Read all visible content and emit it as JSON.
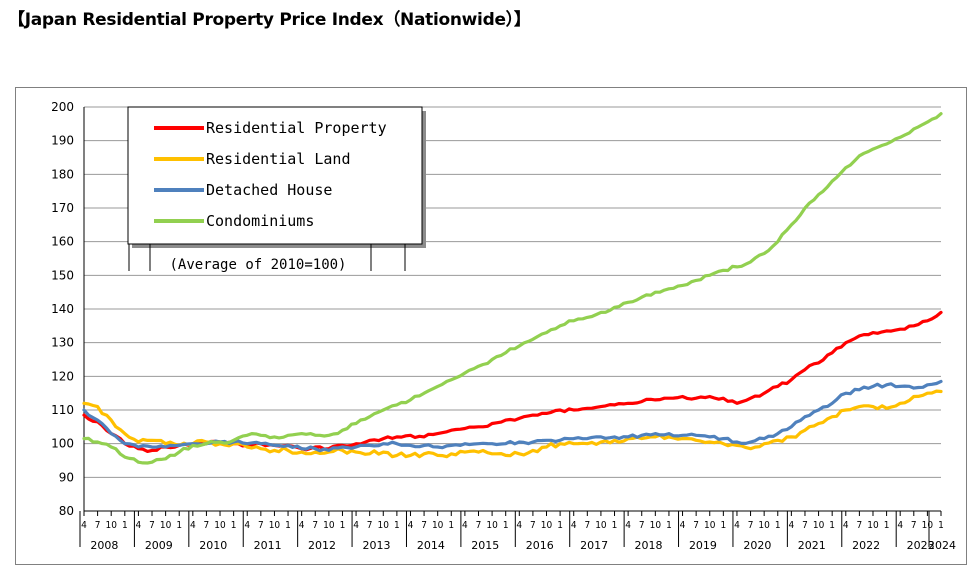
{
  "title": "【Japan Residential Property Price Index（Nationwide）】",
  "chart_data": {
    "type": "line",
    "title": "【Japan Residential Property Price Index（Nationwide）】",
    "note": "(Average of 2010=100)",
    "ylim": [
      80,
      200
    ],
    "yticks": [
      80,
      90,
      100,
      110,
      120,
      130,
      140,
      150,
      160,
      170,
      180,
      190,
      200
    ],
    "grid": true,
    "legend_position": "top-left",
    "month_labels": [
      "4",
      "7",
      "10",
      "1"
    ],
    "years": [
      "2008",
      "2009",
      "2010",
      "2011",
      "2012",
      "2013",
      "2014",
      "2015",
      "2016",
      "2017",
      "2018",
      "2019",
      "2020",
      "2021",
      "2022",
      "2023",
      "2024"
    ],
    "x_start": "2008-04",
    "x_end": "2024-01",
    "series": [
      {
        "name": "Residential Property",
        "color": "#ff0000",
        "points": [
          [
            "2008-04",
            108.5
          ],
          [
            "2008-07",
            106.5
          ],
          [
            "2008-10",
            103
          ],
          [
            "2009-01",
            100
          ],
          [
            "2009-04",
            98.5
          ],
          [
            "2009-07",
            98
          ],
          [
            "2009-10",
            99
          ],
          [
            "2010-01",
            99.5
          ],
          [
            "2010-04",
            100
          ],
          [
            "2010-07",
            100
          ],
          [
            "2010-10",
            100.5
          ],
          [
            "2011-01",
            100
          ],
          [
            "2011-04",
            99.5
          ],
          [
            "2011-07",
            100
          ],
          [
            "2011-10",
            99.5
          ],
          [
            "2012-01",
            99.5
          ],
          [
            "2012-04",
            98.5
          ],
          [
            "2012-07",
            99
          ],
          [
            "2012-10",
            98.5
          ],
          [
            "2013-01",
            99.5
          ],
          [
            "2013-04",
            100
          ],
          [
            "2013-07",
            101
          ],
          [
            "2013-10",
            101.5
          ],
          [
            "2014-01",
            102
          ],
          [
            "2014-04",
            102.5
          ],
          [
            "2014-07",
            102
          ],
          [
            "2014-10",
            103
          ],
          [
            "2015-01",
            104
          ],
          [
            "2015-04",
            104.5
          ],
          [
            "2015-07",
            105
          ],
          [
            "2015-10",
            106
          ],
          [
            "2016-01",
            107
          ],
          [
            "2016-04",
            107.5
          ],
          [
            "2016-07",
            108.5
          ],
          [
            "2016-10",
            109
          ],
          [
            "2017-01",
            110
          ],
          [
            "2017-04",
            110
          ],
          [
            "2017-07",
            110.5
          ],
          [
            "2017-10",
            111
          ],
          [
            "2018-01",
            111.5
          ],
          [
            "2018-04",
            112
          ],
          [
            "2018-07",
            112.5
          ],
          [
            "2018-10",
            113
          ],
          [
            "2019-01",
            113.5
          ],
          [
            "2019-04",
            114
          ],
          [
            "2019-07",
            113.5
          ],
          [
            "2019-10",
            114
          ],
          [
            "2020-01",
            113.5
          ],
          [
            "2020-04",
            112
          ],
          [
            "2020-07",
            113.5
          ],
          [
            "2020-10",
            115
          ],
          [
            "2021-01",
            117
          ],
          [
            "2021-04",
            119
          ],
          [
            "2021-07",
            122
          ],
          [
            "2021-10",
            124
          ],
          [
            "2022-01",
            127
          ],
          [
            "2022-04",
            130
          ],
          [
            "2022-07",
            132
          ],
          [
            "2022-10",
            133
          ],
          [
            "2023-01",
            133.5
          ],
          [
            "2023-04",
            134
          ],
          [
            "2023-07",
            135
          ],
          [
            "2023-10",
            136.5
          ],
          [
            "2024-01",
            139
          ]
        ]
      },
      {
        "name": "Residential Land",
        "color": "#ffc000",
        "points": [
          [
            "2008-04",
            112
          ],
          [
            "2008-07",
            111
          ],
          [
            "2008-10",
            107
          ],
          [
            "2009-01",
            103
          ],
          [
            "2009-04",
            100.5
          ],
          [
            "2009-07",
            101
          ],
          [
            "2009-10",
            100
          ],
          [
            "2010-01",
            99.5
          ],
          [
            "2010-04",
            100
          ],
          [
            "2010-07",
            100.5
          ],
          [
            "2010-10",
            100
          ],
          [
            "2011-01",
            100
          ],
          [
            "2011-04",
            99
          ],
          [
            "2011-07",
            98.5
          ],
          [
            "2011-10",
            98
          ],
          [
            "2012-01",
            98
          ],
          [
            "2012-04",
            97.5
          ],
          [
            "2012-07",
            97.5
          ],
          [
            "2012-10",
            97.5
          ],
          [
            "2013-01",
            98
          ],
          [
            "2013-04",
            97.5
          ],
          [
            "2013-07",
            97
          ],
          [
            "2013-10",
            97.5
          ],
          [
            "2014-01",
            96.5
          ],
          [
            "2014-04",
            96.5
          ],
          [
            "2014-07",
            97
          ],
          [
            "2014-10",
            96.5
          ],
          [
            "2015-01",
            97
          ],
          [
            "2015-04",
            97.5
          ],
          [
            "2015-07",
            97.5
          ],
          [
            "2015-10",
            97
          ],
          [
            "2016-01",
            96.5
          ],
          [
            "2016-04",
            97
          ],
          [
            "2016-07",
            98
          ],
          [
            "2016-10",
            99
          ],
          [
            "2017-01",
            100
          ],
          [
            "2017-04",
            100
          ],
          [
            "2017-07",
            100
          ],
          [
            "2017-10",
            100.5
          ],
          [
            "2018-01",
            101
          ],
          [
            "2018-04",
            101.5
          ],
          [
            "2018-07",
            101.5
          ],
          [
            "2018-10",
            102
          ],
          [
            "2019-01",
            102
          ],
          [
            "2019-04",
            101.5
          ],
          [
            "2019-07",
            101
          ],
          [
            "2019-10",
            100.5
          ],
          [
            "2020-01",
            100
          ],
          [
            "2020-04",
            99.5
          ],
          [
            "2020-07",
            98.5
          ],
          [
            "2020-10",
            100
          ],
          [
            "2021-01",
            101
          ],
          [
            "2021-04",
            102
          ],
          [
            "2021-07",
            104
          ],
          [
            "2021-10",
            106
          ],
          [
            "2022-01",
            108
          ],
          [
            "2022-04",
            110
          ],
          [
            "2022-07",
            111
          ],
          [
            "2022-10",
            111
          ],
          [
            "2023-01",
            110.5
          ],
          [
            "2023-04",
            112
          ],
          [
            "2023-07",
            114
          ],
          [
            "2023-10",
            115
          ],
          [
            "2024-01",
            115.5
          ]
        ]
      },
      {
        "name": "Detached House",
        "color": "#4f81bd",
        "points": [
          [
            "2008-04",
            110
          ],
          [
            "2008-07",
            107
          ],
          [
            "2008-10",
            103
          ],
          [
            "2009-01",
            100
          ],
          [
            "2009-04",
            99
          ],
          [
            "2009-07",
            99
          ],
          [
            "2009-10",
            99
          ],
          [
            "2010-01",
            99.5
          ],
          [
            "2010-04",
            100
          ],
          [
            "2010-07",
            100
          ],
          [
            "2010-10",
            100.5
          ],
          [
            "2011-01",
            100.5
          ],
          [
            "2011-04",
            100
          ],
          [
            "2011-07",
            100
          ],
          [
            "2011-10",
            99.5
          ],
          [
            "2012-01",
            99.5
          ],
          [
            "2012-04",
            98.5
          ],
          [
            "2012-07",
            98.5
          ],
          [
            "2012-10",
            98
          ],
          [
            "2013-01",
            99
          ],
          [
            "2013-04",
            99
          ],
          [
            "2013-07",
            99.5
          ],
          [
            "2013-10",
            100
          ],
          [
            "2014-01",
            100
          ],
          [
            "2014-04",
            99.5
          ],
          [
            "2014-07",
            99.5
          ],
          [
            "2014-10",
            99
          ],
          [
            "2015-01",
            99.5
          ],
          [
            "2015-04",
            100
          ],
          [
            "2015-07",
            100
          ],
          [
            "2015-10",
            100
          ],
          [
            "2016-01",
            100
          ],
          [
            "2016-04",
            100.5
          ],
          [
            "2016-07",
            100.5
          ],
          [
            "2016-10",
            101
          ],
          [
            "2017-01",
            101
          ],
          [
            "2017-04",
            101.5
          ],
          [
            "2017-07",
            101.5
          ],
          [
            "2017-10",
            102
          ],
          [
            "2018-01",
            102
          ],
          [
            "2018-04",
            102
          ],
          [
            "2018-07",
            102.5
          ],
          [
            "2018-10",
            103
          ],
          [
            "2019-01",
            103
          ],
          [
            "2019-04",
            102.5
          ],
          [
            "2019-07",
            102.5
          ],
          [
            "2019-10",
            102
          ],
          [
            "2020-01",
            101.5
          ],
          [
            "2020-04",
            100.5
          ],
          [
            "2020-07",
            100.5
          ],
          [
            "2020-10",
            101.5
          ],
          [
            "2021-01",
            103
          ],
          [
            "2021-04",
            105
          ],
          [
            "2021-07",
            108
          ],
          [
            "2021-10",
            110
          ],
          [
            "2022-01",
            112
          ],
          [
            "2022-04",
            115
          ],
          [
            "2022-07",
            116
          ],
          [
            "2022-10",
            117
          ],
          [
            "2023-01",
            117.5
          ],
          [
            "2023-04",
            117
          ],
          [
            "2023-07",
            116.5
          ],
          [
            "2023-10",
            117.5
          ],
          [
            "2024-01",
            118.5
          ]
        ]
      },
      {
        "name": "Condominiums",
        "color": "#92d050",
        "points": [
          [
            "2008-04",
            101.5
          ],
          [
            "2008-07",
            100.5
          ],
          [
            "2008-10",
            99
          ],
          [
            "2009-01",
            96
          ],
          [
            "2009-04",
            94.5
          ],
          [
            "2009-07",
            94.5
          ],
          [
            "2009-10",
            95.5
          ],
          [
            "2010-01",
            97.5
          ],
          [
            "2010-04",
            99.5
          ],
          [
            "2010-07",
            100
          ],
          [
            "2010-10",
            100.5
          ],
          [
            "2011-01",
            101
          ],
          [
            "2011-04",
            102.5
          ],
          [
            "2011-07",
            102.5
          ],
          [
            "2011-10",
            102
          ],
          [
            "2012-01",
            102.5
          ],
          [
            "2012-04",
            103
          ],
          [
            "2012-07",
            102.5
          ],
          [
            "2012-10",
            102.5
          ],
          [
            "2013-01",
            104
          ],
          [
            "2013-04",
            106
          ],
          [
            "2013-07",
            108
          ],
          [
            "2013-10",
            110
          ],
          [
            "2014-01",
            111.5
          ],
          [
            "2014-04",
            113
          ],
          [
            "2014-07",
            115
          ],
          [
            "2014-10",
            117
          ],
          [
            "2015-01",
            119
          ],
          [
            "2015-04",
            121
          ],
          [
            "2015-07",
            123
          ],
          [
            "2015-10",
            125
          ],
          [
            "2016-01",
            127
          ],
          [
            "2016-04",
            129
          ],
          [
            "2016-07",
            131
          ],
          [
            "2016-10",
            133
          ],
          [
            "2017-01",
            135
          ],
          [
            "2017-04",
            136.5
          ],
          [
            "2017-07",
            137.5
          ],
          [
            "2017-10",
            139
          ],
          [
            "2018-01",
            140.5
          ],
          [
            "2018-04",
            142
          ],
          [
            "2018-07",
            143.5
          ],
          [
            "2018-10",
            145
          ],
          [
            "2019-01",
            146
          ],
          [
            "2019-04",
            147
          ],
          [
            "2019-07",
            148.5
          ],
          [
            "2019-10",
            150
          ],
          [
            "2020-01",
            151.5
          ],
          [
            "2020-04",
            152.5
          ],
          [
            "2020-07",
            154
          ],
          [
            "2020-10",
            156.5
          ],
          [
            "2021-01",
            160
          ],
          [
            "2021-04",
            165
          ],
          [
            "2021-07",
            170
          ],
          [
            "2021-10",
            174
          ],
          [
            "2022-01",
            178
          ],
          [
            "2022-04",
            182
          ],
          [
            "2022-07",
            185.5
          ],
          [
            "2022-10",
            187.5
          ],
          [
            "2023-01",
            189
          ],
          [
            "2023-04",
            191
          ],
          [
            "2023-07",
            193.5
          ],
          [
            "2023-10",
            195.5
          ],
          [
            "2024-01",
            198
          ]
        ]
      }
    ]
  }
}
